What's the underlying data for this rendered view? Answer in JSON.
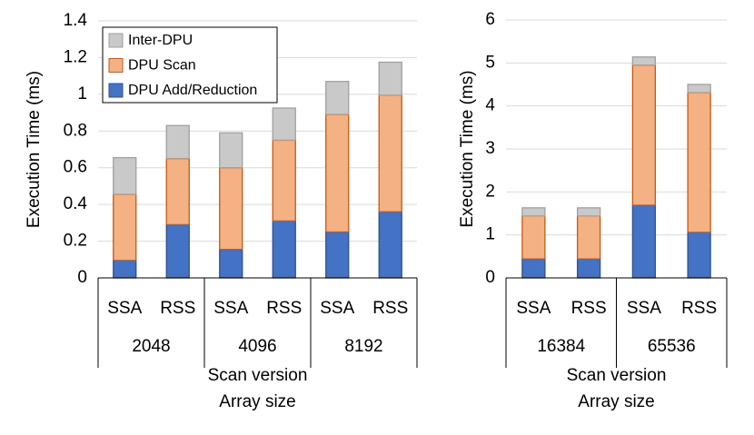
{
  "chart_data": [
    {
      "type": "stacked_bar",
      "ylabel": "Execution Time (ms)",
      "xlabel": "Scan version",
      "xlabel2": "Array size",
      "categories": [
        "SSA",
        "RSS",
        "SSA",
        "RSS",
        "SSA",
        "RSS"
      ],
      "groups": [
        "2048",
        "4096",
        "8192"
      ],
      "series": [
        {
          "name": "DPU Add/Reduction",
          "color": "#4472c4",
          "values": [
            0.095,
            0.29,
            0.155,
            0.31,
            0.25,
            0.36
          ]
        },
        {
          "name": "DPU Scan",
          "color": "#f4b183",
          "values": [
            0.36,
            0.36,
            0.445,
            0.44,
            0.64,
            0.635
          ]
        },
        {
          "name": "Inter-DPU",
          "color": "#c9c9c9",
          "values": [
            0.2,
            0.18,
            0.19,
            0.175,
            0.18,
            0.18
          ]
        }
      ],
      "ylim": [
        0,
        1.4
      ],
      "yticks": [
        0,
        0.2,
        0.4,
        0.6,
        0.8,
        1,
        1.2,
        1.4
      ],
      "grid": true,
      "legend": "top-left"
    },
    {
      "type": "stacked_bar",
      "ylabel": "Execution Time (ms)",
      "xlabel": "Scan version",
      "xlabel2": "Array size",
      "categories": [
        "SSA",
        "RSS",
        "SSA",
        "RSS"
      ],
      "groups": [
        "16384",
        "65536"
      ],
      "series": [
        {
          "color": "#4472c4",
          "values": [
            0.44,
            0.44,
            1.69,
            1.06
          ]
        },
        {
          "color": "#f4b183",
          "values": [
            1.0,
            1.0,
            3.26,
            3.25
          ]
        },
        {
          "color": "#c9c9c9",
          "values": [
            0.19,
            0.19,
            0.19,
            0.19
          ]
        }
      ],
      "ylim": [
        0,
        6
      ],
      "yticks": [
        0,
        1,
        2,
        3,
        4,
        5,
        6
      ],
      "grid": true
    }
  ]
}
